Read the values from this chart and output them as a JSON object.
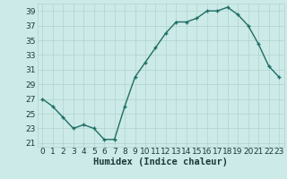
{
  "x": [
    0,
    1,
    2,
    3,
    4,
    5,
    6,
    7,
    8,
    9,
    10,
    11,
    12,
    13,
    14,
    15,
    16,
    17,
    18,
    19,
    20,
    21,
    22,
    23
  ],
  "y": [
    27,
    26,
    24.5,
    23,
    23.5,
    23,
    21.5,
    21.5,
    26,
    30,
    32,
    34,
    36,
    37.5,
    37.5,
    38,
    39,
    39,
    39.5,
    38.5,
    37,
    34.5,
    31.5,
    30
  ],
  "line_color": "#1e6e65",
  "marker_color": "#1e6e65",
  "bg_color": "#cceae7",
  "grid_color": "#b0d4d0",
  "xlabel": "Humidex (Indice chaleur)",
  "xlim": [
    -0.5,
    23.5
  ],
  "ylim": [
    20.5,
    40
  ],
  "yticks": [
    21,
    23,
    25,
    27,
    29,
    31,
    33,
    35,
    37,
    39
  ],
  "xticks": [
    0,
    1,
    2,
    3,
    4,
    5,
    6,
    7,
    8,
    9,
    10,
    11,
    12,
    13,
    14,
    15,
    16,
    17,
    18,
    19,
    20,
    21,
    22,
    23
  ],
  "font_color": "#1a3a3a",
  "xlabel_fontsize": 7.5,
  "tick_fontsize": 6.5,
  "line_width": 1.0,
  "marker_size": 3.5
}
